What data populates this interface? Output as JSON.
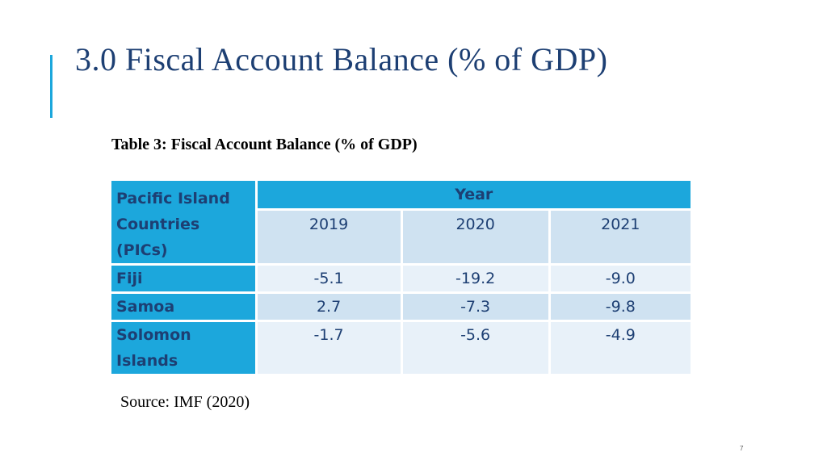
{
  "slide": {
    "title": "3.0 Fiscal Account Balance (% of GDP)",
    "page_number": "7"
  },
  "table": {
    "caption": "Table 3: Fiscal Account Balance (% of GDP)",
    "row_header": "Pacific Island Countries (PICs)",
    "year_header": "Year",
    "years": [
      "2019",
      "2020",
      "2021"
    ],
    "rows": [
      {
        "country": "Fiji",
        "values": [
          "-5.1",
          "-19.2",
          "-9.0"
        ]
      },
      {
        "country": "Samoa",
        "values": [
          "2.7",
          "-7.3",
          "-9.8"
        ]
      },
      {
        "country": "Solomon Islands",
        "values": [
          "-1.7",
          "-5.6",
          "-4.9"
        ]
      }
    ]
  },
  "source": "Source: IMF (2020)",
  "colors": {
    "title": "#1d3f73",
    "accent": "#1ca7dc",
    "header_fill": "#1ca7dc",
    "band_dark": "#cfe2f1",
    "band_light": "#e8f1f9"
  }
}
